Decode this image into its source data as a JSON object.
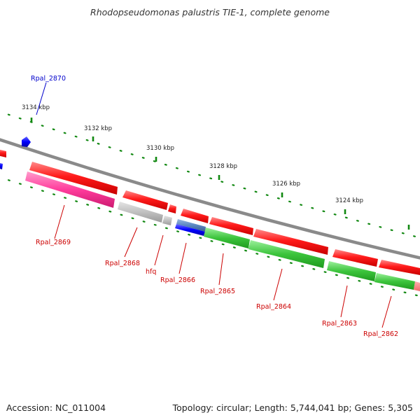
{
  "title": "Rhodopseudomonas palustris TIE-1, complete genome",
  "footer": {
    "accession": "Accession: NC_011004",
    "summary": "Topology: circular; Length: 5,744,041 bp; Genes: 5,305"
  },
  "ruler_labels": [
    "3134 kbp",
    "3132 kbp",
    "3130 kbp",
    "3128 kbp",
    "3126 kbp",
    "3124 kbp"
  ],
  "genes": [
    {
      "name": "Rpal_2870",
      "color": "#0000cc"
    },
    {
      "name": "Rpal_2869",
      "color": "#cc0000"
    },
    {
      "name": "Rpal_2868",
      "color": "#cc0000"
    },
    {
      "name": "hfq",
      "color": "#cc0000"
    },
    {
      "name": "Rpal_2866",
      "color": "#cc0000"
    },
    {
      "name": "Rpal_2865",
      "color": "#cc0000"
    },
    {
      "name": "Rpal_2864",
      "color": "#cc0000"
    },
    {
      "name": "Rpal_2863",
      "color": "#cc0000"
    },
    {
      "name": "Rpal_2862",
      "color": "#cc0000"
    }
  ],
  "colors": {
    "backbone": "#8a8a8a",
    "cds_red": "#ff0000",
    "pink": "#ff3c9c",
    "green": "#3cc43c",
    "gray_feature": "#c0c0c0",
    "blue_feature": "#0000ff",
    "ruler": "#118811"
  }
}
